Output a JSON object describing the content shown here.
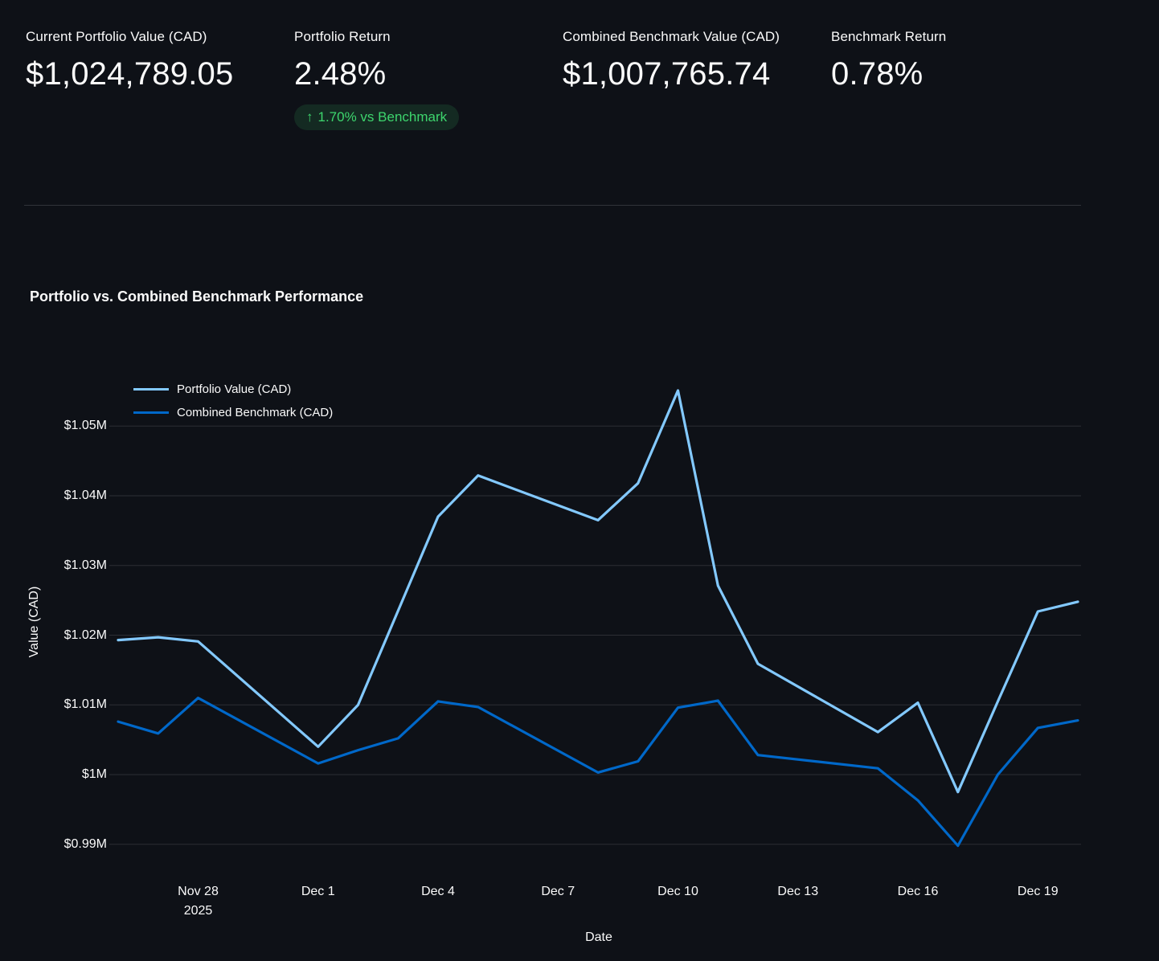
{
  "metrics": [
    {
      "label": "Current Portfolio Value (CAD)",
      "value": "$1,024,789.05"
    },
    {
      "label": "Portfolio Return",
      "value": "2.48%",
      "delta": {
        "arrow": "↑",
        "text": "1.70% vs Benchmark",
        "color": "#3dd56d"
      }
    },
    {
      "label": "Combined Benchmark Value (CAD)",
      "value": "$1,007,765.74"
    },
    {
      "label": "Benchmark Return",
      "value": "0.78%"
    }
  ],
  "chart_data": {
    "type": "line",
    "title": "Portfolio vs. Combined Benchmark Performance",
    "xlabel": "Date",
    "ylabel": "Value (CAD)",
    "x_dates": [
      "Nov 26",
      "Nov 27",
      "Nov 28",
      "Dec 1",
      "Dec 2",
      "Dec 3",
      "Dec 4",
      "Dec 5",
      "Dec 8",
      "Dec 9",
      "Dec 10",
      "Dec 11",
      "Dec 12",
      "Dec 15",
      "Dec 16",
      "Dec 17",
      "Dec 18",
      "Dec 19",
      "Dec 20"
    ],
    "day_offsets": [
      0,
      1,
      2,
      5,
      6,
      7,
      8,
      9,
      12,
      13,
      14,
      15,
      16,
      19,
      20,
      21,
      22,
      23,
      24
    ],
    "series": [
      {
        "name": "Portfolio Value (CAD)",
        "color": "#83c9ff",
        "values_musd": [
          1.0193,
          1.0197,
          1.0191,
          1.004,
          1.01,
          1.0235,
          1.037,
          1.0429,
          1.0365,
          1.0418,
          1.0551,
          1.0271,
          1.0159,
          1.0061,
          1.0103,
          0.9975,
          1.0105,
          1.0234,
          1.02479
        ]
      },
      {
        "name": "Combined Benchmark (CAD)",
        "color": "#0068c9",
        "values_musd": [
          1.0076,
          1.0059,
          1.011,
          1.0016,
          1.0035,
          1.0052,
          1.0105,
          1.0097,
          1.0003,
          1.0019,
          1.0096,
          1.0106,
          1.0028,
          1.0009,
          0.9963,
          0.9898,
          1.0,
          1.0067,
          1.00777
        ]
      }
    ],
    "yticks": [
      {
        "value": 0.99,
        "label": "$0.99M"
      },
      {
        "value": 1.0,
        "label": "$1M"
      },
      {
        "value": 1.01,
        "label": "$1.01M"
      },
      {
        "value": 1.02,
        "label": "$1.02M"
      },
      {
        "value": 1.03,
        "label": "$1.03M"
      },
      {
        "value": 1.04,
        "label": "$1.04M"
      },
      {
        "value": 1.05,
        "label": "$1.05M"
      }
    ],
    "xticks": [
      {
        "offset": 2,
        "label": "Nov 28",
        "sub": "2025"
      },
      {
        "offset": 5,
        "label": "Dec 1",
        "sub": ""
      },
      {
        "offset": 8,
        "label": "Dec 4",
        "sub": ""
      },
      {
        "offset": 11,
        "label": "Dec 7",
        "sub": ""
      },
      {
        "offset": 14,
        "label": "Dec 10",
        "sub": ""
      },
      {
        "offset": 17,
        "label": "Dec 13",
        "sub": ""
      },
      {
        "offset": 20,
        "label": "Dec 16",
        "sub": ""
      },
      {
        "offset": 23,
        "label": "Dec 19",
        "sub": ""
      }
    ],
    "ylim": [
      0.9855,
      1.0565
    ],
    "grid": true,
    "legend_position": "top-left",
    "colors": {
      "background": "#0e1117",
      "text": "#fafafa",
      "gridline": "rgba(250,250,250,0.13)"
    }
  }
}
